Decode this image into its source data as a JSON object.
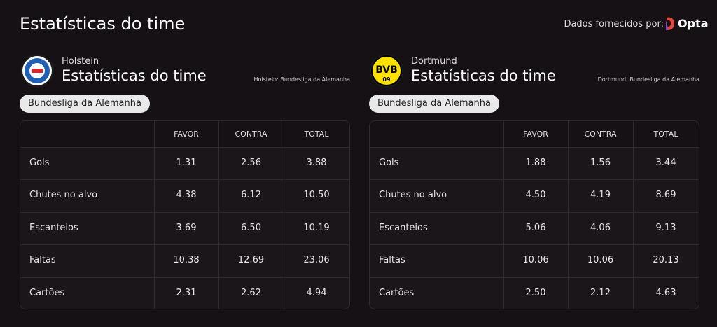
{
  "header": {
    "title": "Estatísticas do time",
    "provider_label": "Dados fornecidos por:",
    "provider": "Opta"
  },
  "panels": [
    {
      "team": "Holstein",
      "title": "Estatísticas do time",
      "competition_note": "Holstein: Bundesliga da Alemanha",
      "competition": "Bundesliga da Alemanha",
      "table": {
        "columns": [
          "FAVOR",
          "CONTRA",
          "TOTAL"
        ],
        "rows": [
          [
            "Gols",
            "1.31",
            "2.56",
            "3.88"
          ],
          [
            "Chutes no alvo",
            "4.38",
            "6.12",
            "10.50"
          ],
          [
            "Escanteios",
            "3.69",
            "6.50",
            "10.19"
          ],
          [
            "Faltas",
            "10.38",
            "12.69",
            "23.06"
          ],
          [
            "Cartões",
            "2.31",
            "2.62",
            "4.94"
          ]
        ]
      }
    },
    {
      "team": "Dortmund",
      "logo_text": "BVB",
      "logo_year": "09",
      "title": "Estatísticas do time",
      "competition_note": "Dortmund: Bundesliga da Alemanha",
      "competition": "Bundesliga da Alemanha",
      "table": {
        "columns": [
          "FAVOR",
          "CONTRA",
          "TOTAL"
        ],
        "rows": [
          [
            "Gols",
            "1.88",
            "1.56",
            "3.44"
          ],
          [
            "Chutes no alvo",
            "4.50",
            "4.19",
            "8.69"
          ],
          [
            "Escanteios",
            "5.06",
            "4.06",
            "9.13"
          ],
          [
            "Faltas",
            "10.06",
            "10.06",
            "20.13"
          ],
          [
            "Cartões",
            "2.50",
            "2.12",
            "4.63"
          ]
        ]
      }
    }
  ]
}
